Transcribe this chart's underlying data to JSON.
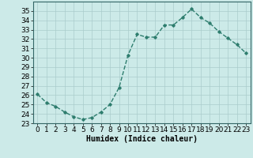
{
  "x": [
    0,
    1,
    2,
    3,
    4,
    5,
    6,
    7,
    8,
    9,
    10,
    11,
    12,
    13,
    14,
    15,
    16,
    17,
    18,
    19,
    20,
    21,
    22,
    23
  ],
  "y": [
    26.1,
    25.2,
    24.8,
    24.2,
    23.7,
    23.4,
    23.6,
    24.2,
    25.0,
    26.8,
    30.3,
    32.5,
    32.2,
    32.2,
    33.5,
    33.5,
    34.3,
    35.2,
    34.3,
    33.7,
    32.8,
    32.1,
    31.4,
    30.5
  ],
  "xlabel": "Humidex (Indice chaleur)",
  "line_color": "#2e7d6e",
  "marker": "D",
  "marker_size": 1.8,
  "line_width": 1.0,
  "bg_color": "#cceae8",
  "grid_color": "#aacccc",
  "xlim": [
    -0.5,
    23.5
  ],
  "ylim": [
    23,
    36
  ],
  "yticks": [
    23,
    24,
    25,
    26,
    27,
    28,
    29,
    30,
    31,
    32,
    33,
    34,
    35
  ],
  "xticks": [
    0,
    1,
    2,
    3,
    4,
    5,
    6,
    7,
    8,
    9,
    10,
    11,
    12,
    13,
    14,
    15,
    16,
    17,
    18,
    19,
    20,
    21,
    22,
    23
  ],
  "xlabel_fontsize": 7,
  "tick_fontsize": 6.5
}
